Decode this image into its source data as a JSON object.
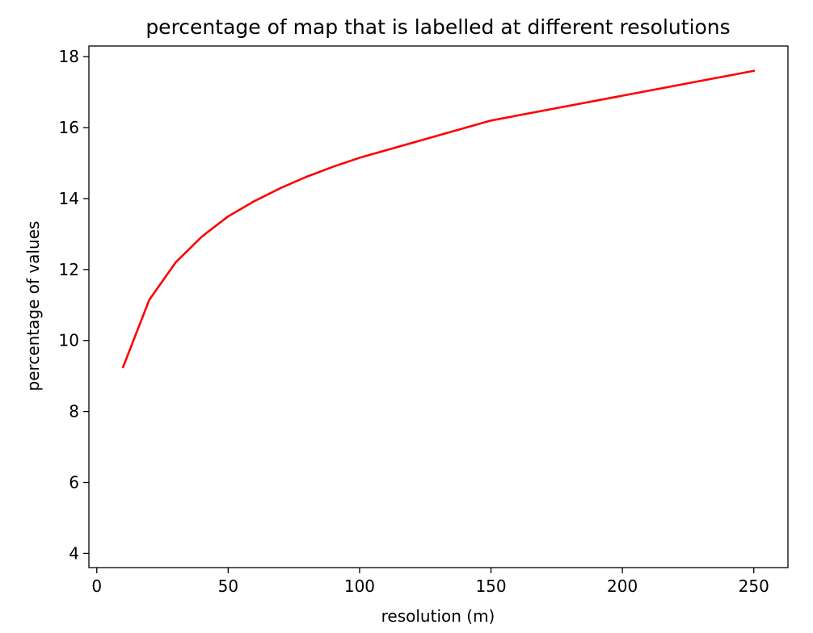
{
  "chart_data": {
    "type": "line",
    "title": "percentage of map that is labelled at different resolutions",
    "xlabel": "resolution (m)",
    "ylabel": "percentage of values",
    "xlim": [
      -3,
      263
    ],
    "ylim": [
      3.6,
      18.3
    ],
    "xticks": [
      0,
      50,
      100,
      150,
      200,
      250
    ],
    "yticks": [
      4,
      6,
      8,
      10,
      12,
      14,
      16,
      18
    ],
    "grid": false,
    "legend": null,
    "series": [
      {
        "color": "#ff0000",
        "x": [
          10,
          20,
          30,
          40,
          50,
          60,
          70,
          80,
          90,
          100,
          150,
          250
        ],
        "y": [
          9.25,
          11.15,
          12.2,
          12.93,
          13.5,
          13.93,
          14.3,
          14.62,
          14.9,
          15.15,
          16.2,
          17.6
        ]
      }
    ]
  }
}
